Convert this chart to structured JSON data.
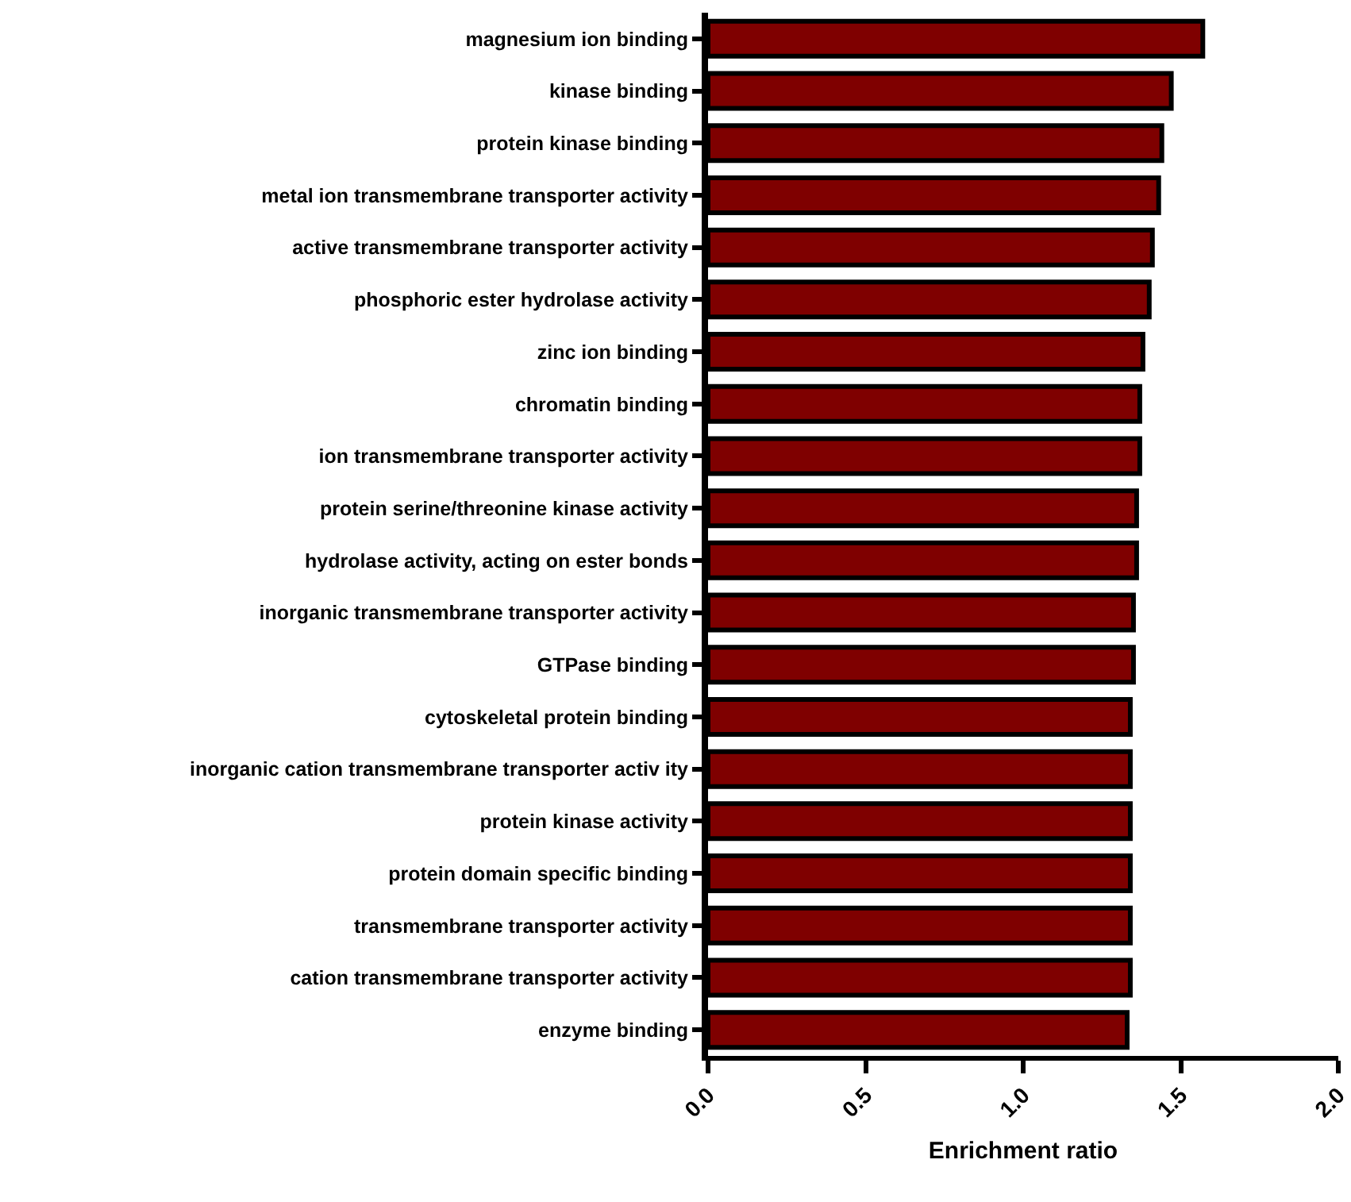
{
  "chart_data": {
    "type": "bar",
    "orientation": "horizontal",
    "xlabel": "Enrichment ratio",
    "categories": [
      "magnesium ion binding",
      "kinase binding",
      "protein kinase binding",
      "metal ion transmembrane transporter activity",
      "active transmembrane transporter activity",
      "phosphoric ester hydrolase activity",
      "zinc ion binding",
      "chromatin binding",
      "ion transmembrane transporter activity",
      "protein serine/threonine kinase activity",
      "hydrolase activity, acting on ester bonds",
      "inorganic transmembrane transporter activity",
      "GTPase binding",
      "cytoskeletal protein binding",
      "inorganic cation transmembrane transporter activ ity",
      "protein kinase activity",
      "protein domain specific binding",
      "transmembrane transporter activity",
      "cation transmembrane transporter activity",
      "enzyme binding"
    ],
    "values": [
      1.57,
      1.47,
      1.44,
      1.43,
      1.41,
      1.4,
      1.38,
      1.37,
      1.37,
      1.36,
      1.36,
      1.35,
      1.35,
      1.34,
      1.34,
      1.34,
      1.34,
      1.34,
      1.34,
      1.33
    ],
    "color": "#7f0000",
    "xlim": [
      0,
      2.0
    ],
    "xticks": [
      {
        "value": 0,
        "label": "0.0"
      },
      {
        "value": 0.5,
        "label": "0.5"
      },
      {
        "value": 1.0,
        "label": "1.0"
      },
      {
        "value": 1.5,
        "label": "1.5"
      },
      {
        "value": 2.0,
        "label": "2.0"
      }
    ]
  }
}
